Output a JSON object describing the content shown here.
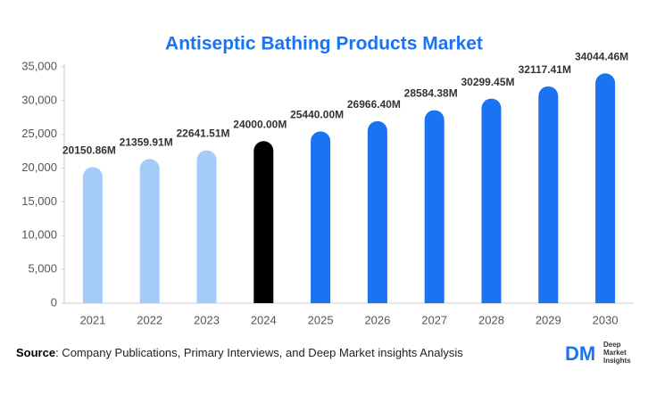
{
  "chart_data": {
    "type": "bar",
    "title": "Antiseptic Bathing Products Market",
    "categories": [
      "2021",
      "2022",
      "2023",
      "2024",
      "2025",
      "2026",
      "2027",
      "2028",
      "2029",
      "2030"
    ],
    "values": [
      20150.86,
      21359.91,
      22641.51,
      24000.0,
      25440.0,
      26966.4,
      28584.38,
      30299.45,
      32117.41,
      34044.46
    ],
    "value_labels": [
      "20150.86M",
      "21359.91M",
      "22641.51M",
      "24000.00M",
      "25440.00M",
      "26966.40M",
      "28584.38M",
      "30299.45M",
      "32117.41M",
      "34044.46M"
    ],
    "colors": [
      "#a3cdf8",
      "#a3cdf8",
      "#a3cdf8",
      "#000000",
      "#1a73f0",
      "#1a73f0",
      "#1a73f0",
      "#1a73f0",
      "#1a73f0",
      "#1a73f0"
    ],
    "ylim": [
      0,
      35000
    ],
    "yticks": [
      0,
      {
        "value": 5000,
        "label": "5,000"
      },
      {
        "value": 10000,
        "label": "10,000"
      },
      {
        "value": 15000,
        "label": "15,000"
      },
      {
        "value": 20000,
        "label": "20,000"
      },
      {
        "value": 25000,
        "label": "25,000"
      },
      {
        "value": 30000,
        "label": "30,000"
      },
      {
        "value": 35000,
        "label": "35,000"
      }
    ],
    "grid": false
  },
  "source_label": "Source",
  "source_text": ": Company Publications, Primary Interviews, and Deep Market insights Analysis",
  "logo_mark": "DM",
  "logo_text": [
    "Deep",
    "Market",
    "Insights"
  ]
}
